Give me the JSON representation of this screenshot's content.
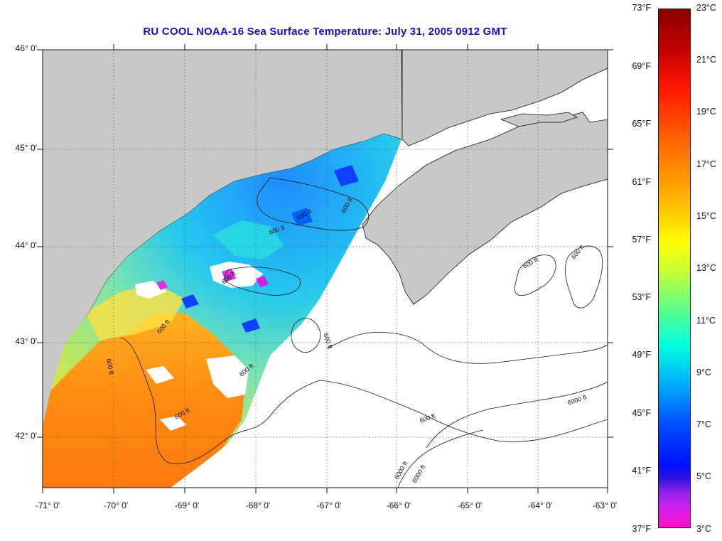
{
  "title": "RU COOL  NOAA-16  Sea Surface Temperature:  July 31, 2005 0912 GMT",
  "lat_labels": [
    "46° 0'",
    "45° 0'",
    "44° 0'",
    "43° 0'",
    "42° 0'"
  ],
  "lon_labels": [
    "-71° 0'",
    "-70° 0'",
    "-69° 0'",
    "-68° 0'",
    "-67° 0'",
    "-66° 0'",
    "-65° 0'",
    "-64° 0'",
    "-63° 0'"
  ],
  "depth_labels": [
    "600 ft",
    "600 ft",
    "600 ft",
    "600 ft",
    "600 ft",
    "600 ft",
    "600 ft",
    "600 ft",
    "600 ft",
    "600 ft",
    "600 ft",
    "6000 ft",
    "6000 ft",
    "600 ft",
    "6000 ft"
  ],
  "colorbar": {
    "fahrenheit": [
      "73°F",
      "69°F",
      "65°F",
      "61°F",
      "57°F",
      "53°F",
      "49°F",
      "45°F",
      "41°F",
      "37°F"
    ],
    "celsius": [
      "23°C",
      "21°C",
      "19°C",
      "17°C",
      "15°C",
      "13°C",
      "11°C",
      "9°C",
      "7°C",
      "5°C",
      "3°C"
    ]
  },
  "colors": {
    "land": "#c8c8c8",
    "ocean_no_data": "#ffffff",
    "title": "#1010c0",
    "cloud": "#ffffff"
  }
}
